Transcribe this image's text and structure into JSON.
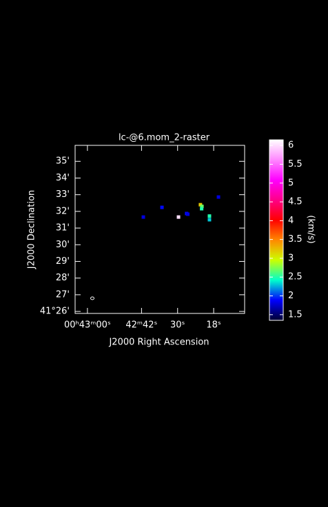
{
  "chart_data": {
    "type": "raster",
    "title": "lc-@6.mom_2-raster",
    "x_label": "J2000 Right Ascension",
    "y_label": "J2000 Declination",
    "colorbar_label": "(km/s)",
    "xlim": [
      2584.1,
      2527.7
    ],
    "xticks": [
      {
        "value": 2580,
        "label": "00ʰ43ᵐ00ˢ"
      },
      {
        "value": 2562,
        "label": "42ᵐ42ˢ"
      },
      {
        "value": 2550,
        "label": "30ˢ"
      },
      {
        "value": 2538,
        "label": "18ˢ"
      }
    ],
    "ylim": [
      25.88,
      35.96
    ],
    "yticks": [
      {
        "value": 26,
        "label": "41°26'"
      },
      {
        "value": 27,
        "label": "27'"
      },
      {
        "value": 28,
        "label": "28'"
      },
      {
        "value": 29,
        "label": "29'"
      },
      {
        "value": 30,
        "label": "30'"
      },
      {
        "value": 31,
        "label": "31'"
      },
      {
        "value": 32,
        "label": "32'"
      },
      {
        "value": 33,
        "label": "33'"
      },
      {
        "value": 34,
        "label": "34'"
      },
      {
        "value": 35,
        "label": "35'"
      }
    ],
    "clim": [
      1.35,
      6.15
    ],
    "cticks": [
      1.5,
      2,
      2.5,
      3,
      3.5,
      4,
      4.5,
      5,
      5.5,
      6
    ],
    "colormap": [
      "#000030",
      "#0000ff",
      "#00ffcc",
      "#ccff00",
      "#ff8800",
      "#ff0000",
      "#ff0088",
      "#ff00ff",
      "#ff88ff",
      "#ffffff"
    ],
    "x": [
      2561.4,
      2555.2,
      2549.7,
      2547.0,
      2546.6,
      2542.4,
      2541.9,
      2542.0,
      2539.4,
      2539.4,
      2536.4
    ],
    "y": [
      31.66,
      32.24,
      31.66,
      31.87,
      31.83,
      32.4,
      32.3,
      32.16,
      31.72,
      31.5,
      32.86
    ],
    "values": [
      1.8,
      1.9,
      6.0,
      1.9,
      1.8,
      3.2,
      2.7,
      2.5,
      2.5,
      2.3,
      1.8
    ]
  }
}
